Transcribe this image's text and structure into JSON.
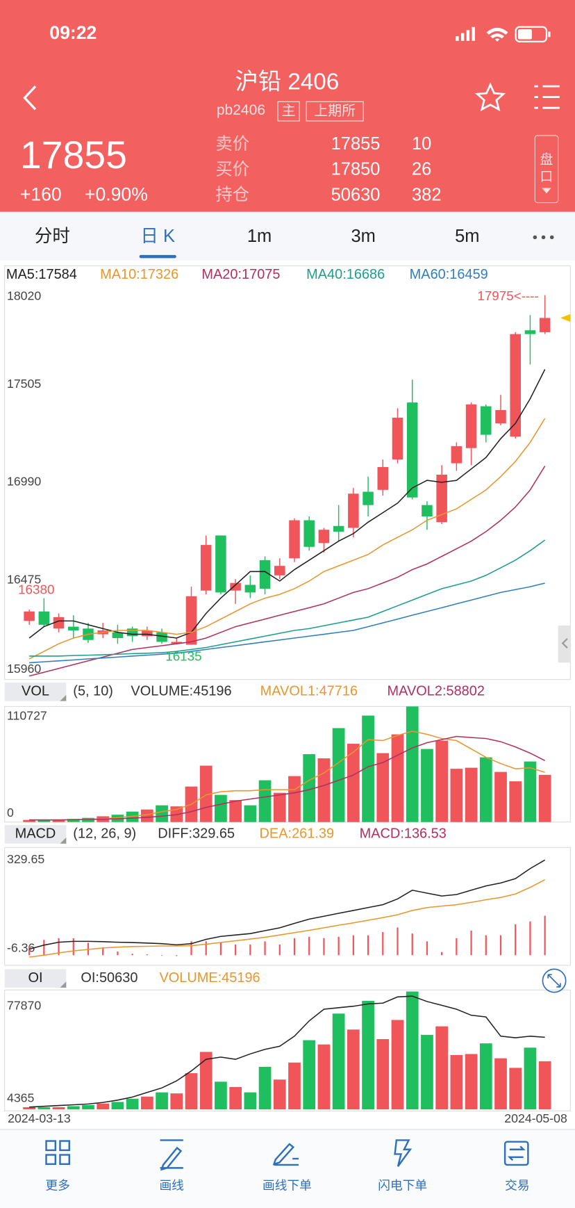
{
  "status_bar": {
    "time": "09:22"
  },
  "header": {
    "title": "沪铅 2406",
    "code": "pb2406",
    "tags": [
      "主",
      "上期所"
    ]
  },
  "quote": {
    "last": "17855",
    "change": "+160",
    "change_pct": "+0.90%",
    "rows": [
      [
        "卖价",
        "17855",
        "10"
      ],
      [
        "买价",
        "17850",
        "26"
      ],
      [
        "持仓",
        "50630",
        "382"
      ]
    ],
    "panel_button": "盘口"
  },
  "tabs": [
    "分时",
    "日 K",
    "1m",
    "3m",
    "5m"
  ],
  "active_tab": 1,
  "toolbar": [
    "更多",
    "画线",
    "画线下单",
    "闪电下单",
    "交易"
  ],
  "chart_data": [
    {
      "type": "candlestick",
      "up_color": "#f0555a",
      "down_color": "#1fbf5f",
      "categories": [
        "2024-03-13",
        null,
        null,
        null,
        null,
        null,
        null,
        null,
        null,
        null,
        null,
        null,
        null,
        null,
        null,
        null,
        null,
        null,
        null,
        null,
        null,
        null,
        null,
        null,
        null,
        null,
        null,
        null,
        null,
        null,
        null,
        null,
        null,
        null,
        null,
        "2024-05-08"
      ],
      "open": [
        16260,
        16310,
        16220,
        16230,
        16220,
        16190,
        16200,
        16220,
        16180,
        16200,
        16140,
        16135,
        16420,
        16710,
        16420,
        16450,
        16580,
        16500,
        16590,
        16790,
        16670,
        16760,
        16750,
        16940,
        16950,
        17110,
        17410,
        16870,
        16780,
        17090,
        17170,
        17390,
        17300,
        17230,
        17790,
        17780
      ],
      "high": [
        16320,
        16380,
        16300,
        16290,
        16250,
        16250,
        16240,
        16230,
        16230,
        16220,
        16170,
        16440,
        16710,
        16710,
        16480,
        16500,
        16600,
        16590,
        16800,
        16810,
        16750,
        16870,
        16960,
        17020,
        17110,
        17380,
        17530,
        16890,
        17080,
        17200,
        17410,
        17400,
        17450,
        17780,
        17870,
        17975
      ],
      "low": [
        16240,
        16230,
        16200,
        16170,
        16145,
        16170,
        16140,
        16150,
        16160,
        16140,
        16140,
        16135,
        16400,
        16400,
        16350,
        16380,
        16400,
        16480,
        16570,
        16630,
        16620,
        16680,
        16700,
        16810,
        16920,
        17090,
        16900,
        16740,
        16770,
        17050,
        17080,
        17200,
        17290,
        17220,
        17610,
        17770
      ],
      "close": [
        16310,
        16240,
        16280,
        16210,
        16160,
        16210,
        16170,
        16180,
        16210,
        16150,
        16150,
        16390,
        16660,
        16410,
        16460,
        16410,
        16430,
        16550,
        16790,
        16650,
        16740,
        16730,
        16930,
        16870,
        17070,
        17330,
        16910,
        16810,
        17030,
        17180,
        17400,
        17240,
        17370,
        17770,
        17770,
        17855
      ],
      "series": [
        {
          "name": "MA5:17584",
          "color": "#222222",
          "values": [
            16170,
            16230,
            16260,
            16260,
            16240,
            16220,
            16200,
            16190,
            16190,
            16180,
            16170,
            16200,
            16300,
            16380,
            16450,
            16520,
            16520,
            16470,
            16530,
            16580,
            16630,
            16680,
            16720,
            16780,
            16830,
            16880,
            16960,
            17000,
            16990,
            17000,
            17060,
            17120,
            17220,
            17300,
            17430,
            17584
          ]
        },
        {
          "name": "MA10:17326",
          "color": "#e8962e",
          "values": [
            16060,
            16100,
            16140,
            16170,
            16190,
            16200,
            16210,
            16210,
            16210,
            16200,
            16190,
            16200,
            16230,
            16270,
            16310,
            16350,
            16380,
            16400,
            16430,
            16470,
            16520,
            16550,
            16580,
            16610,
            16660,
            16700,
            16740,
            16790,
            16820,
            16850,
            16900,
            16950,
            17020,
            17100,
            17200,
            17326
          ]
        },
        {
          "name": "MA20:17075",
          "color": "#b03060",
          "values": [
            15970,
            15990,
            16010,
            16030,
            16050,
            16070,
            16090,
            16110,
            16120,
            16130,
            16140,
            16150,
            16170,
            16200,
            16230,
            16250,
            16270,
            16290,
            16310,
            16330,
            16350,
            16380,
            16410,
            16430,
            16460,
            16490,
            16530,
            16560,
            16600,
            16640,
            16680,
            16730,
            16790,
            16860,
            16950,
            17075
          ]
        },
        {
          "name": "MA40:16686",
          "color": "#1e9e8a",
          "values": [
            16075,
            16075,
            16075,
            16078,
            16080,
            16082,
            16085,
            16088,
            16090,
            16093,
            16100,
            16110,
            16120,
            16135,
            16150,
            16165,
            16180,
            16195,
            16210,
            16220,
            16235,
            16250,
            16265,
            16280,
            16310,
            16340,
            16370,
            16400,
            16430,
            16450,
            16470,
            16500,
            16540,
            16580,
            16630,
            16686
          ]
        },
        {
          "name": "MA60:16459",
          "color": "#2f7fc0",
          "values": [
            16040,
            16045,
            16050,
            16055,
            16060,
            16065,
            16070,
            16075,
            16080,
            16085,
            16090,
            16100,
            16110,
            16120,
            16130,
            16140,
            16150,
            16160,
            16170,
            16180,
            16190,
            16200,
            16210,
            16230,
            16250,
            16270,
            16290,
            16310,
            16330,
            16350,
            16370,
            16390,
            16410,
            16425,
            16440,
            16459
          ]
        }
      ],
      "ylim": [
        15960,
        18020
      ],
      "yticks": [
        18020,
        17505,
        16990,
        16475,
        15960
      ],
      "annotations": [
        {
          "text": "16380",
          "point": 1,
          "at": "high",
          "color": "#f0555a"
        },
        {
          "text": "16135",
          "point": 11,
          "at": "low",
          "color": "#1fbf5f"
        },
        {
          "text": "17975<----",
          "point": 35,
          "at": "high",
          "color": "#f0555a"
        }
      ],
      "last_marker_color": "#f2c200"
    },
    {
      "type": "bar",
      "title": "VOL",
      "params": "(5, 10)",
      "value_name": "VOLUME:45196",
      "value_color": "#333333",
      "values": [
        2000,
        2000,
        2000,
        3000,
        4000,
        5500,
        7000,
        10000,
        12000,
        16000,
        15000,
        34000,
        54000,
        26000,
        21000,
        16000,
        40000,
        28000,
        44000,
        65000,
        61000,
        90000,
        75000,
        102000,
        66000,
        84000,
        110727,
        70000,
        78000,
        51000,
        52000,
        62000,
        48000,
        39000,
        58000,
        45196
      ],
      "series": [
        {
          "name": "MAVOL1:47716",
          "color": "#e8962e",
          "values": [
            2000,
            2000,
            2000,
            2300,
            2600,
            3200,
            4100,
            5500,
            7000,
            10000,
            12000,
            17000,
            26000,
            29000,
            30000,
            30000,
            31000,
            31000,
            31000,
            40000,
            47000,
            57000,
            67000,
            79000,
            78000,
            83000,
            87000,
            84000,
            80000,
            78000,
            70000,
            62000,
            56000,
            51000,
            52000,
            47716
          ]
        },
        {
          "name": "MAVOL2:58802",
          "color": "#b03060",
          "values": [
            2000,
            2000,
            2000,
            2200,
            2400,
            2700,
            3100,
            3700,
            4500,
            5600,
            7000,
            10000,
            14000,
            17000,
            20000,
            22000,
            24000,
            26000,
            28000,
            31000,
            35000,
            40000,
            45000,
            53000,
            57000,
            64000,
            71000,
            76000,
            79000,
            82000,
            81000,
            80000,
            77000,
            72000,
            66000,
            58802
          ]
        }
      ],
      "ylim": [
        0,
        110727
      ],
      "yticks": [
        110727,
        0
      ]
    },
    {
      "type": "macd",
      "title": "MACD",
      "params": "(12, 26, 9)",
      "value_name": "MACD:136.53",
      "value_color": "#b03060",
      "values": [
        32,
        53,
        59,
        59,
        43,
        27,
        13,
        5,
        3,
        -2,
        -3,
        48,
        48,
        43,
        37,
        37,
        48,
        37,
        59,
        64,
        59,
        64,
        69,
        69,
        80,
        96,
        75,
        48,
        11,
        59,
        85,
        69,
        69,
        107,
        117,
        136.53
      ],
      "series": [
        {
          "name": "DIFF:329.65",
          "color": "#222222",
          "values": [
            21,
            35,
            45,
            48,
            48,
            47,
            45,
            44,
            42,
            40,
            36,
            40,
            55,
            65,
            70,
            75,
            85,
            95,
            110,
            125,
            135,
            145,
            155,
            165,
            175,
            195,
            225,
            215,
            205,
            210,
            225,
            240,
            250,
            265,
            300,
            329.65
          ]
        },
        {
          "name": "DEA:261.39",
          "color": "#e8962e",
          "values": [
            -6.36,
            0,
            8,
            15,
            20,
            25,
            28,
            30,
            31,
            32,
            32,
            33,
            38,
            44,
            50,
            56,
            62,
            70,
            78,
            86,
            95,
            104,
            112,
            121,
            130,
            140,
            155,
            165,
            170,
            175,
            183,
            192,
            200,
            212,
            235,
            261.39
          ]
        }
      ],
      "ylim": [
        -35,
        373
      ],
      "yticks": [
        329.65,
        -6.36
      ]
    },
    {
      "type": "oi",
      "title": "OI",
      "bars_name": "VOLUME:45196",
      "bars_color": "#e8962e",
      "series": [
        {
          "name": "OI:50630",
          "color": "#222222",
          "values": [
            4365,
            4875,
            5385,
            5895,
            6405,
            7425,
            8955,
            11000,
            14050,
            17100,
            21700,
            28300,
            36000,
            37500,
            36000,
            39600,
            42600,
            44700,
            51300,
            61500,
            69200,
            70200,
            71200,
            72700,
            73200,
            77360,
            77870,
            74300,
            71800,
            69200,
            65200,
            64100,
            51300,
            50300,
            51300,
            50630
          ]
        }
      ],
      "ylim": [
        2835,
        80930
      ],
      "yticks": [
        77870,
        4365
      ],
      "y2lim": [
        0,
        110727
      ]
    }
  ]
}
